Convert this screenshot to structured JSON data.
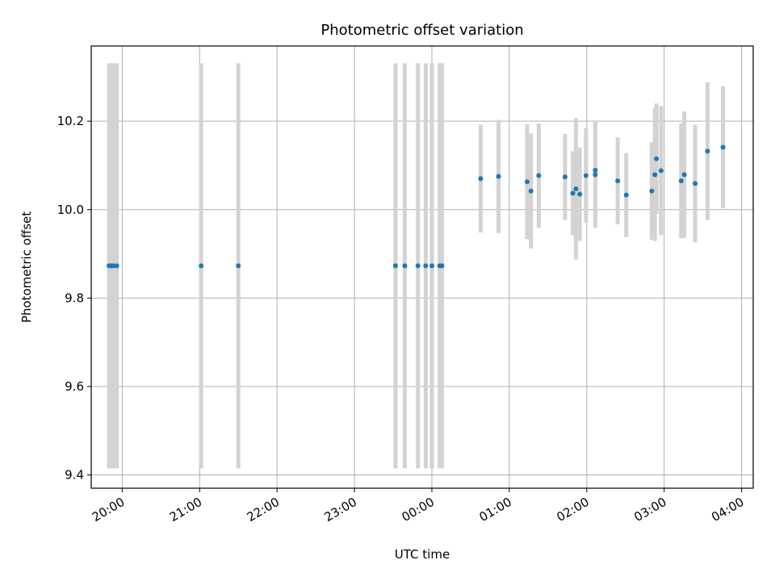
{
  "chart_data": {
    "type": "scatter",
    "title": "Photometric offset variation",
    "xlabel": "UTC time",
    "ylabel": "Photometric offset",
    "x_unit": "hours (UTC, values past 24 continue after midnight)",
    "xlim": [
      19.6,
      28.15
    ],
    "ylim": [
      9.37,
      10.37
    ],
    "x_ticks": [
      {
        "value": 20,
        "label": "20:00"
      },
      {
        "value": 21,
        "label": "21:00"
      },
      {
        "value": 22,
        "label": "22:00"
      },
      {
        "value": 23,
        "label": "23:00"
      },
      {
        "value": 24,
        "label": "00:00"
      },
      {
        "value": 25,
        "label": "01:00"
      },
      {
        "value": 26,
        "label": "02:00"
      },
      {
        "value": 27,
        "label": "03:00"
      },
      {
        "value": 28,
        "label": "04:00"
      }
    ],
    "y_ticks": [
      {
        "value": 9.4,
        "label": "9.4"
      },
      {
        "value": 9.6,
        "label": "9.6"
      },
      {
        "value": 9.8,
        "label": "9.8"
      },
      {
        "value": 10.0,
        "label": "10.0"
      },
      {
        "value": 10.2,
        "label": "10.2"
      }
    ],
    "grid": true,
    "marker_color": "#1f77b4",
    "errorbar_color": "#d3d3d3",
    "points": [
      {
        "x": 19.83,
        "y": 9.873,
        "err": 0.458
      },
      {
        "x": 19.86,
        "y": 9.873,
        "err": 0.458
      },
      {
        "x": 19.89,
        "y": 9.873,
        "err": 0.458
      },
      {
        "x": 19.93,
        "y": 9.873,
        "err": 0.458
      },
      {
        "x": 21.02,
        "y": 9.873,
        "err": 0.458
      },
      {
        "x": 21.5,
        "y": 9.873,
        "err": 0.458
      },
      {
        "x": 23.53,
        "y": 9.873,
        "err": 0.458
      },
      {
        "x": 23.65,
        "y": 9.873,
        "err": 0.458
      },
      {
        "x": 23.82,
        "y": 9.873,
        "err": 0.458
      },
      {
        "x": 23.92,
        "y": 9.873,
        "err": 0.458
      },
      {
        "x": 24.0,
        "y": 9.873,
        "err": 0.458
      },
      {
        "x": 24.1,
        "y": 9.873,
        "err": 0.458
      },
      {
        "x": 24.13,
        "y": 9.873,
        "err": 0.458
      },
      {
        "x": 24.63,
        "y": 10.07,
        "err": 0.122
      },
      {
        "x": 24.86,
        "y": 10.075,
        "err": 0.128
      },
      {
        "x": 25.23,
        "y": 10.063,
        "err": 0.13
      },
      {
        "x": 25.28,
        "y": 10.042,
        "err": 0.13
      },
      {
        "x": 25.38,
        "y": 10.077,
        "err": 0.118
      },
      {
        "x": 25.72,
        "y": 10.074,
        "err": 0.097
      },
      {
        "x": 25.82,
        "y": 10.037,
        "err": 0.095
      },
      {
        "x": 25.86,
        "y": 10.047,
        "err": 0.16
      },
      {
        "x": 25.91,
        "y": 10.035,
        "err": 0.106
      },
      {
        "x": 25.99,
        "y": 10.077,
        "err": 0.107
      },
      {
        "x": 26.11,
        "y": 10.089,
        "err": 0.113
      },
      {
        "x": 26.11,
        "y": 10.079,
        "err": 0.12
      },
      {
        "x": 26.4,
        "y": 10.065,
        "err": 0.098
      },
      {
        "x": 26.51,
        "y": 10.033,
        "err": 0.095
      },
      {
        "x": 26.84,
        "y": 10.042,
        "err": 0.11
      },
      {
        "x": 26.88,
        "y": 10.079,
        "err": 0.15
      },
      {
        "x": 26.9,
        "y": 10.115,
        "err": 0.125
      },
      {
        "x": 26.96,
        "y": 10.088,
        "err": 0.146
      },
      {
        "x": 27.22,
        "y": 10.065,
        "err": 0.13
      },
      {
        "x": 27.26,
        "y": 10.079,
        "err": 0.143
      },
      {
        "x": 27.4,
        "y": 10.059,
        "err": 0.133
      },
      {
        "x": 27.56,
        "y": 10.132,
        "err": 0.156
      },
      {
        "x": 27.76,
        "y": 10.141,
        "err": 0.138
      }
    ]
  }
}
